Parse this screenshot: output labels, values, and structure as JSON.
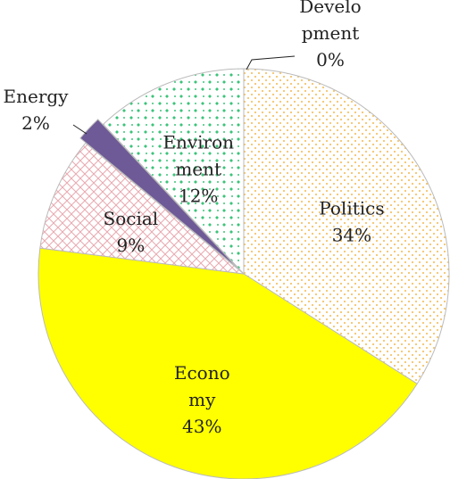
{
  "chart_data": {
    "type": "pie",
    "categories": [
      "Development",
      "Politics",
      "Economy",
      "Social",
      "Energy",
      "Environment"
    ],
    "values": [
      0,
      34,
      43,
      9,
      2,
      12
    ],
    "value_labels": [
      "0%",
      "34%",
      "43%",
      "9%",
      "2%",
      "12%"
    ],
    "colors": [
      "#e07b2a",
      "#f5c46a",
      "#ffff00",
      "#e9a9b0",
      "#6e5a96",
      "#3cc47a"
    ]
  }
}
